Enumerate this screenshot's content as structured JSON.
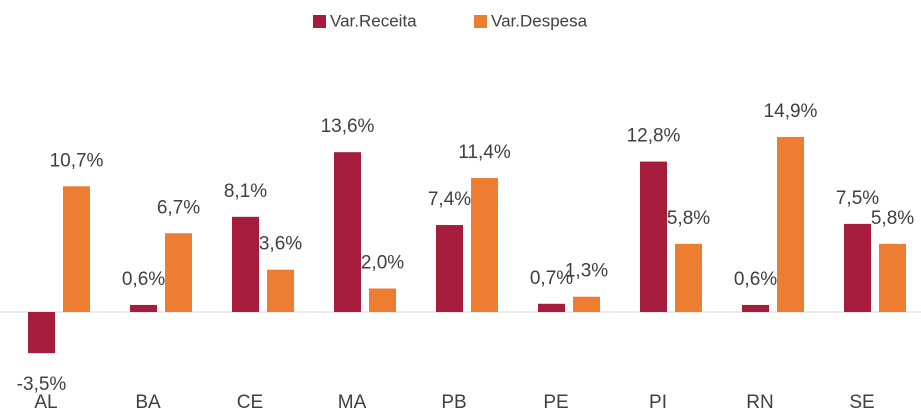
{
  "chart_data": {
    "type": "bar",
    "categories": [
      "AL",
      "BA",
      "CE",
      "MA",
      "PB",
      "PE",
      "PI",
      "RN",
      "SE"
    ],
    "series": [
      {
        "name": "Var.Receita",
        "color": "#a51c3c",
        "values": [
          -3.5,
          0.6,
          8.1,
          13.6,
          7.4,
          0.7,
          12.8,
          0.6,
          7.5
        ],
        "value_labels": [
          "-3,5%",
          "0,6%",
          "8,1%",
          "13,6%",
          "7,4%",
          "0,7%",
          "12,8%",
          "0,6%",
          "7,5%"
        ]
      },
      {
        "name": "Var.Despesa",
        "color": "#ed7d31",
        "values": [
          10.7,
          6.7,
          3.6,
          2.0,
          11.4,
          1.3,
          5.8,
          14.9,
          5.8
        ],
        "value_labels": [
          "10,7%",
          "6,7%",
          "3,6%",
          "2,0%",
          "11,4%",
          "1,3%",
          "5,8%",
          "14,9%",
          "5,8%"
        ]
      }
    ],
    "ylim": [
      -4,
      16
    ],
    "legend": "top"
  }
}
